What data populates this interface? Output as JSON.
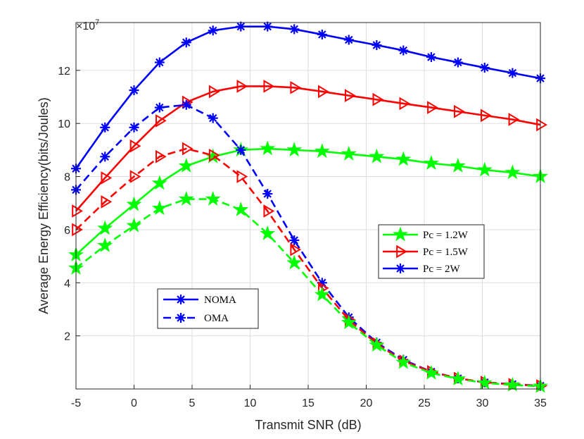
{
  "chart_data": {
    "type": "line",
    "title": "",
    "xlabel": "Transmit SNR (dB)",
    "ylabel": "Average Energy Efficiency(bits/Joules)",
    "exponent_label": "×10",
    "exponent_power": "7",
    "xlim": [
      -5,
      35
    ],
    "ylim": [
      0,
      13.8
    ],
    "xticks": [
      -5,
      0,
      5,
      10,
      15,
      20,
      25,
      30,
      35
    ],
    "xtick_labels": [
      "-5",
      "0",
      "5",
      "10",
      "15",
      "20",
      "25",
      "30",
      "35"
    ],
    "yticks": [
      2,
      4,
      6,
      8,
      10,
      12
    ],
    "ytick_labels": [
      "2",
      "4",
      "6",
      "8",
      "10",
      "12"
    ],
    "grid": true,
    "x": [
      -5,
      -2.5,
      0,
      2.2,
      4.5,
      6.8,
      9.2,
      11.5,
      13.8,
      16.2,
      18.5,
      20.9,
      23.2,
      25.6,
      27.9,
      30.2,
      32.6,
      35
    ],
    "series": [
      {
        "name": "NOMA Pc = 2W",
        "color": "#0000ff",
        "style": "solid",
        "marker": "asterisk",
        "values": [
          8.3,
          9.85,
          11.25,
          12.3,
          13.05,
          13.5,
          13.65,
          13.65,
          13.55,
          13.35,
          13.15,
          12.95,
          12.75,
          12.5,
          12.3,
          12.1,
          11.9,
          11.7
        ]
      },
      {
        "name": "NOMA Pc = 1.5W",
        "color": "#ff0000",
        "style": "solid",
        "marker": "triangle-right",
        "values": [
          6.7,
          7.95,
          9.15,
          10.1,
          10.8,
          11.2,
          11.4,
          11.4,
          11.35,
          11.2,
          11.05,
          10.9,
          10.75,
          10.6,
          10.45,
          10.3,
          10.15,
          9.95
        ]
      },
      {
        "name": "NOMA Pc = 1.2W",
        "color": "#00ff00",
        "style": "solid",
        "marker": "pentagram",
        "values": [
          5.05,
          6.05,
          6.95,
          7.75,
          8.4,
          8.75,
          9.0,
          9.05,
          9.0,
          8.95,
          8.85,
          8.75,
          8.65,
          8.5,
          8.4,
          8.25,
          8.15,
          8.0
        ]
      },
      {
        "name": "OMA Pc = 2W",
        "color": "#0000ff",
        "style": "dashed",
        "marker": "asterisk",
        "values": [
          7.5,
          8.75,
          9.85,
          10.6,
          10.7,
          10.2,
          9.0,
          7.35,
          5.6,
          4.0,
          2.7,
          1.75,
          1.1,
          0.65,
          0.4,
          0.25,
          0.18,
          0.12
        ]
      },
      {
        "name": "OMA Pc = 1.5W",
        "color": "#ff0000",
        "style": "dashed",
        "marker": "triangle-right",
        "values": [
          6.0,
          7.05,
          8.0,
          8.75,
          9.05,
          8.8,
          8.0,
          6.7,
          5.25,
          3.8,
          2.6,
          1.7,
          1.05,
          0.65,
          0.4,
          0.25,
          0.17,
          0.12
        ]
      },
      {
        "name": "OMA Pc = 1.2W",
        "color": "#00ff00",
        "style": "dashed",
        "marker": "pentagram",
        "values": [
          4.55,
          5.4,
          6.15,
          6.8,
          7.15,
          7.15,
          6.75,
          5.85,
          4.75,
          3.55,
          2.5,
          1.65,
          1.0,
          0.6,
          0.38,
          0.23,
          0.15,
          0.1
        ]
      }
    ],
    "legend_power": [
      {
        "label": "Pc = 1.2W",
        "color": "#00ff00",
        "marker": "pentagram"
      },
      {
        "label": "Pc = 1.5W",
        "color": "#ff0000",
        "marker": "triangle-right"
      },
      {
        "label": "Pc = 2W",
        "color": "#0000ff",
        "marker": "asterisk"
      }
    ],
    "legend_scheme": [
      {
        "label": "NOMA",
        "color": "#0000ff",
        "style": "solid",
        "marker": "asterisk"
      },
      {
        "label": "OMA",
        "color": "#0000ff",
        "style": "dashed",
        "marker": "asterisk"
      }
    ],
    "legend_power_placement": "center-right",
    "legend_scheme_placement": "lower-left"
  }
}
